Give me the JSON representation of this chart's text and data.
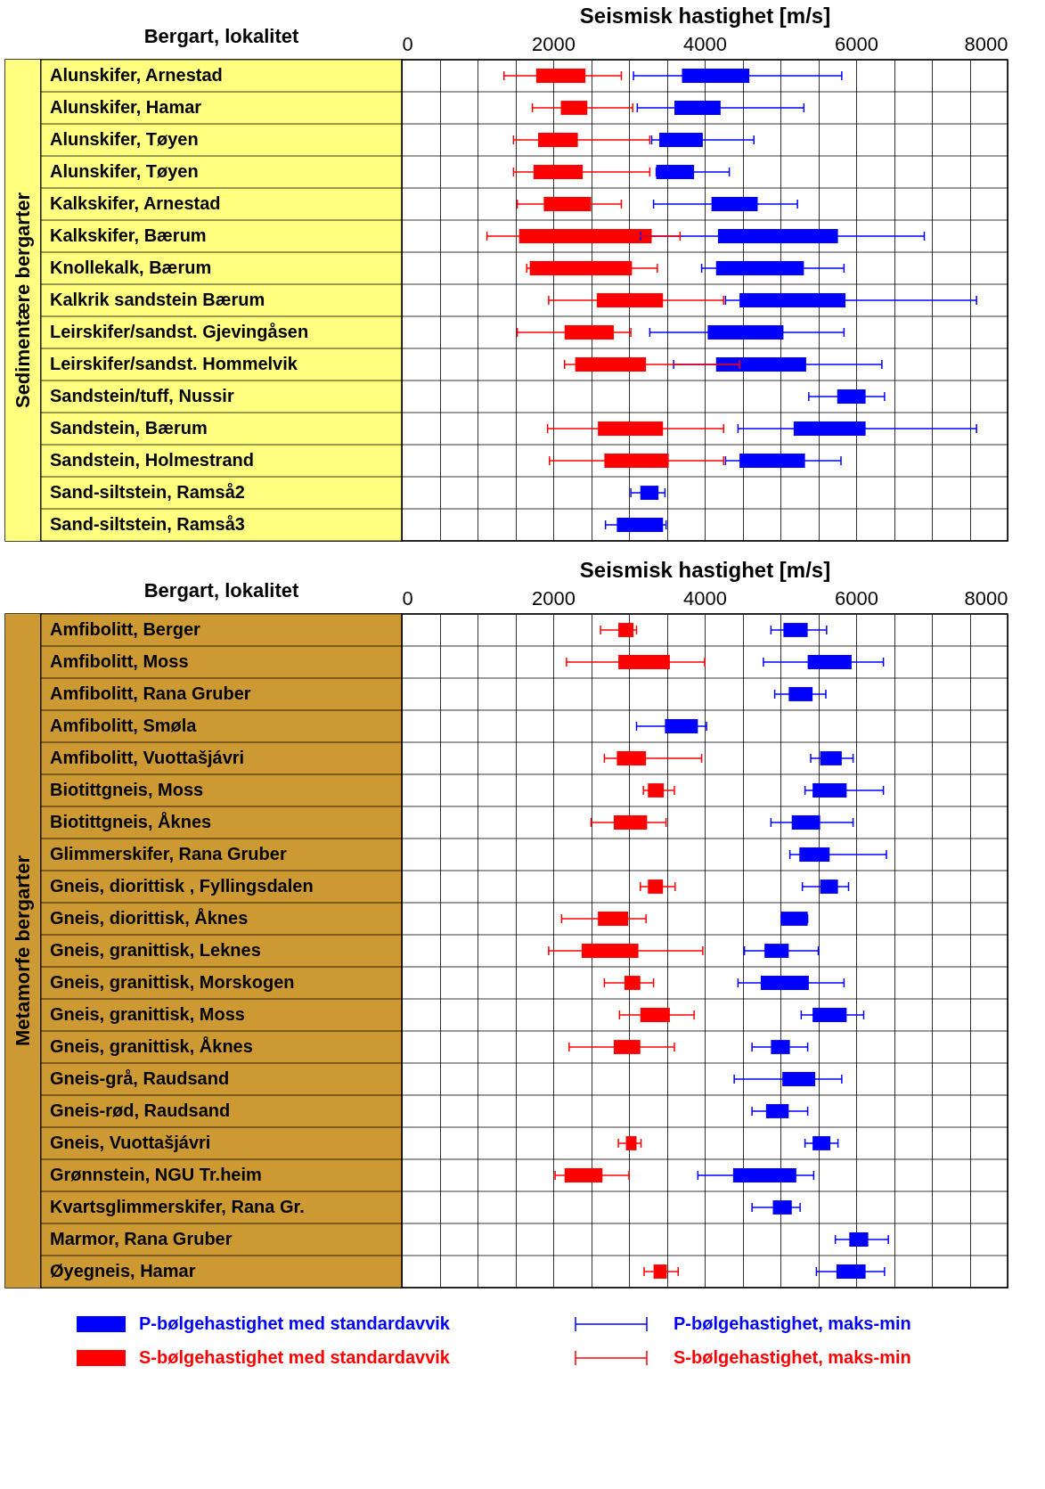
{
  "chart_data": [
    {
      "type": "bar",
      "orientation": "horizontal",
      "xlabel": "Seismisk hastighet  [m/s]",
      "ylabel": "Sedimentære bergarter",
      "annotations": [
        "Bergart,  lokalitet"
      ],
      "categories": [
        "Alunskifer, Arnestad",
        "Alunskifer, Hamar",
        "Alunskifer, Tøyen",
        "Alunskifer, Tøyen",
        "Kalkskifer, Arnestad",
        "Kalkskifer, Bærum",
        "Knollekalk, Bærum",
        "Kalkrik sandstein Bærum",
        "Leirskifer/sandst. Gjevingåsen",
        "Leirskifer/sandst. Hommelvik",
        "Sandstein/tuff, Nussir",
        "Sandstein, Bærum",
        "Sandstein, Holmestrand",
        "Sand-siltstein, Ramså2",
        "Sand-siltstein, Ramså3"
      ],
      "xlim": [
        0,
        8000
      ],
      "xticks": [
        0,
        {
          "value": 500,
          "label": null
        },
        {
          "value": 1000,
          "label": null
        },
        {
          "value": 1500,
          "label": null
        },
        2000,
        {
          "value": 2500,
          "label": null
        },
        {
          "value": 3000,
          "label": null
        },
        {
          "value": 3500,
          "label": null
        },
        4000,
        {
          "value": 4500,
          "label": null
        },
        {
          "value": 5000,
          "label": null
        },
        {
          "value": 5500,
          "label": null
        },
        6000,
        {
          "value": 6500,
          "label": null
        },
        {
          "value": 7000,
          "label": null
        },
        {
          "value": 7500,
          "label": null
        },
        8000
      ],
      "grid": "x",
      "series": [
        {
          "color": "#0000ff",
          "base": [
            3700,
            3600,
            3400,
            3360,
            4090,
            4175,
            4150,
            4460,
            4040,
            4150,
            5750,
            5175,
            4460,
            3150,
            2840
          ],
          "values": [
            890,
            610,
            575,
            500,
            610,
            1585,
            1160,
            1400,
            1000,
            1190,
            375,
            950,
            865,
            240,
            610
          ],
          "errors": [
            [
              3060,
              5810
            ],
            [
              3110,
              5310
            ],
            [
              3300,
              4650
            ],
            [
              3360,
              4325
            ],
            [
              3325,
              5225
            ],
            [
              3150,
              6900
            ],
            [
              3960,
              5840
            ],
            [
              4275,
              7590
            ],
            [
              3275,
              5840
            ],
            [
              3590,
              6340
            ],
            [
              5375,
              6375
            ],
            [
              4440,
              7590
            ],
            [
              4275,
              5800
            ],
            [
              3025,
              3475
            ],
            [
              2690,
              3490
            ]
          ]
        },
        {
          "color": "#ff0000",
          "base": [
            1775,
            2100,
            1800,
            1740,
            1875,
            1550,
            1690,
            2575,
            2150,
            2290,
            null,
            2590,
            2675,
            null,
            null
          ],
          "values": [
            650,
            350,
            525,
            650,
            625,
            1750,
            1350,
            875,
            650,
            935,
            null,
            860,
            850,
            null,
            null
          ],
          "errors": [
            [
              1350,
              2900
            ],
            [
              1725,
              3050
            ],
            [
              1475,
              3275
            ],
            [
              1475,
              3275
            ],
            [
              1525,
              2900
            ],
            [
              1125,
              3675
            ],
            [
              1650,
              3375
            ],
            [
              1940,
              4250
            ],
            [
              1525,
              3025
            ],
            [
              2150,
              4460
            ],
            null,
            [
              1925,
              4250
            ],
            [
              1950,
              4250
            ],
            null,
            null
          ]
        }
      ]
    },
    {
      "type": "bar",
      "orientation": "horizontal",
      "xlabel": "Seismisk hastighet  [m/s]",
      "ylabel": "Metamorfe bergarter",
      "annotations": [
        "Bergart,  lokalitet",
        "P-bølgehastighet, maks-min",
        "S-bølgehastighet, maks-min"
      ],
      "legend": "bottom",
      "categories": [
        "Amfibolitt, Berger",
        "Amfibolitt, Moss",
        "Amfibolitt, Rana Gruber",
        "Amfibolitt, Smøla",
        "Amfibolitt, Vuottašjávri",
        "Biotittgneis, Moss",
        "Biotittgneis, Åknes",
        "Glimmerskifer, Rana Gruber",
        "Gneis, diorittisk , Fyllingsdalen",
        "Gneis, diorittisk,  Åknes",
        "Gneis, granittisk,  Leknes",
        "Gneis, granittisk,  Morskogen",
        "Gneis, granittisk,  Moss",
        "Gneis, granittisk,  Åknes",
        "Gneis-grå, Raudsand",
        "Gneis-rød, Raudsand",
        "Gneis, Vuottašjávri",
        "Grønnstein, NGU Tr.heim",
        "Kvartsglimmerskifer, Rana Gr.",
        "Marmor, Rana Gruber",
        "Øyegneis, Hamar"
      ],
      "xlim": [
        0,
        8000
      ],
      "xticks": [
        0,
        {
          "value": 500,
          "label": null
        },
        {
          "value": 1000,
          "label": null
        },
        {
          "value": 1500,
          "label": null
        },
        2000,
        {
          "value": 2500,
          "label": null
        },
        {
          "value": 3000,
          "label": null
        },
        {
          "value": 3500,
          "label": null
        },
        4000,
        {
          "value": 4500,
          "label": null
        },
        {
          "value": 5000,
          "label": null
        },
        {
          "value": 5500,
          "label": null
        },
        6000,
        {
          "value": 6500,
          "label": null
        },
        {
          "value": 7000,
          "label": null
        },
        {
          "value": 7500,
          "label": null
        },
        8000
      ],
      "grid": "x",
      "series": [
        {
          "name": "P-bølgehastighet med standardavvik",
          "color": "#0000ff",
          "base": [
            5040,
            5360,
            5110,
            3475,
            5525,
            5425,
            5150,
            5250,
            5525,
            5010,
            4790,
            4740,
            5425,
            4875,
            5025,
            4810,
            5425,
            4375,
            4900,
            5910,
            5740
          ],
          "values": [
            320,
            580,
            315,
            435,
            285,
            450,
            375,
            400,
            235,
            350,
            320,
            635,
            450,
            250,
            435,
            300,
            235,
            835,
            250,
            250,
            385
          ],
          "errors": [
            [
              4875,
              5610
            ],
            [
              4775,
              6360
            ],
            [
              4925,
              5600
            ],
            [
              3100,
              4025
            ],
            [
              5400,
              5960
            ],
            [
              5325,
              6360
            ],
            [
              4875,
              5960
            ],
            [
              5125,
              6400
            ],
            [
              5290,
              5900
            ],
            [
              5010,
              5360
            ],
            [
              4525,
              5500
            ],
            [
              4440,
              5840
            ],
            [
              5275,
              6100
            ],
            [
              4625,
              5360
            ],
            [
              4390,
              5810
            ],
            [
              4625,
              5360
            ],
            [
              5325,
              5760
            ],
            [
              3910,
              5440
            ],
            [
              4625,
              5260
            ],
            [
              5725,
              6425
            ],
            [
              5475,
              6375
            ]
          ]
        },
        {
          "name": "S-bølgehastighet med standardavvik",
          "color": "#ff0000",
          "base": [
            2860,
            2860,
            null,
            null,
            2840,
            3250,
            2800,
            null,
            3250,
            2590,
            2375,
            2940,
            3150,
            2800,
            null,
            null,
            2960,
            2150,
            null,
            null,
            3325
          ],
          "values": [
            200,
            680,
            null,
            null,
            385,
            210,
            440,
            null,
            200,
            400,
            750,
            210,
            390,
            350,
            null,
            null,
            140,
            500,
            null,
            null,
            175
          ],
          "errors": [
            [
              2625,
              3100
            ],
            [
              2175,
              4000
            ],
            null,
            null,
            [
              2675,
              3960
            ],
            [
              3190,
              3600
            ],
            [
              2500,
              3490
            ],
            null,
            [
              3150,
              3610
            ],
            [
              2110,
              3225
            ],
            [
              1940,
              3975
            ],
            [
              2675,
              3325
            ],
            [
              2875,
              3860
            ],
            [
              2210,
              3600
            ],
            null,
            null,
            [
              2860,
              3160
            ],
            [
              2025,
              3000
            ],
            null,
            null,
            [
              3200,
              3650
            ]
          ]
        }
      ]
    }
  ]
}
